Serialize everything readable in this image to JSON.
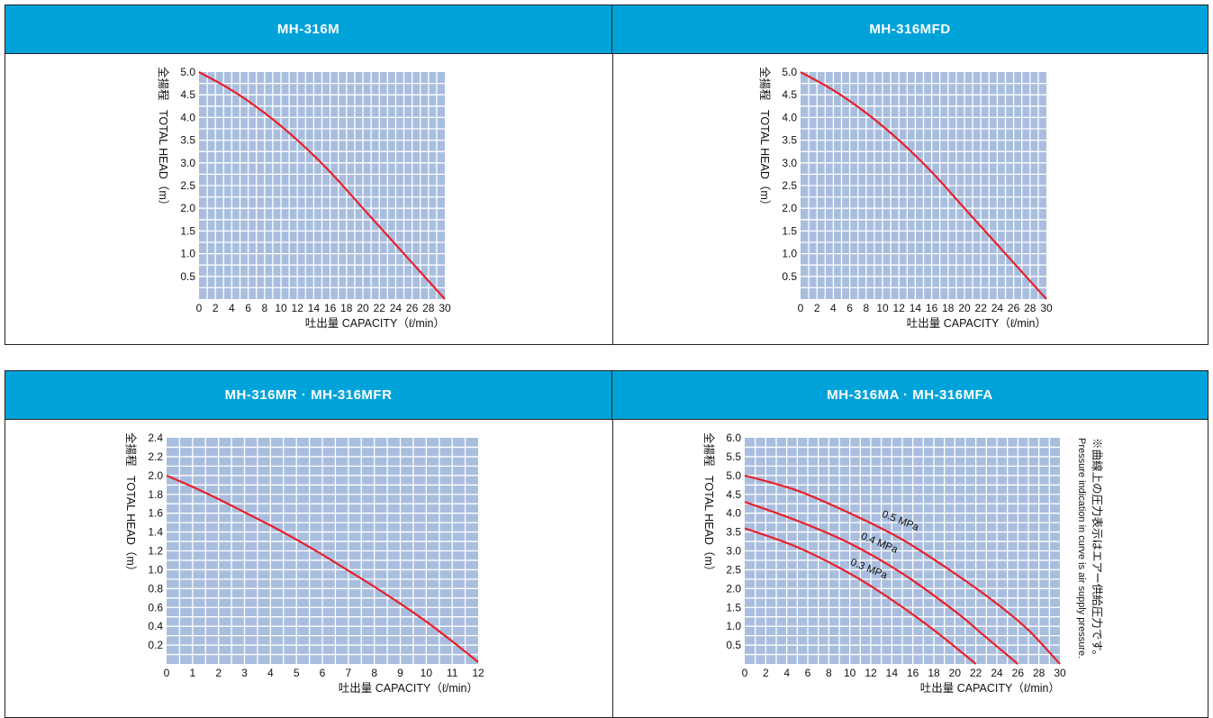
{
  "headers": {
    "top_left": "MH-316M",
    "top_right": "MH-316MFD",
    "bottom_left": "MH-316MR · MH-316MFR",
    "bottom_right": "MH-316MA · MH-316MFA"
  },
  "side_note": {
    "jp": "※曲線上の圧力表示はエアー供給圧力です。",
    "en": "Pressure indication in curve is air supply pressure."
  },
  "colors": {
    "header": "#00a3d9",
    "plot": "#a9bedf",
    "grid": "#ffffff",
    "curve": "#e8202a"
  },
  "chart_data": [
    {
      "type": "line",
      "title": "MH-316M",
      "xlabel": "吐出量 CAPACITY（ℓ/min）",
      "ylabel_jp": "全揚程",
      "ylabel": "TOTAL HEAD（m）",
      "xlim": [
        0,
        30
      ],
      "ylim": [
        0,
        5
      ],
      "x_ticks": [
        0,
        2,
        4,
        6,
        8,
        10,
        12,
        14,
        16,
        18,
        20,
        22,
        24,
        26,
        28,
        30
      ],
      "y_ticks": [
        "0.5",
        "1.0",
        "1.5",
        "2.0",
        "2.5",
        "3.0",
        "3.5",
        "4.0",
        "4.5",
        "5.0"
      ],
      "grid": true,
      "series": [
        {
          "x": [
            0,
            4,
            8,
            12,
            16,
            20,
            24,
            26,
            28,
            30
          ],
          "y": [
            5.0,
            4.6,
            4.1,
            3.5,
            2.8,
            2.0,
            1.2,
            0.8,
            0.4,
            0.0
          ]
        }
      ]
    },
    {
      "type": "line",
      "title": "MH-316MFD",
      "xlabel": "吐出量 CAPACITY（ℓ/min）",
      "ylabel_jp": "全揚程",
      "ylabel": "TOTAL HEAD（m）",
      "xlim": [
        0,
        30
      ],
      "ylim": [
        0,
        5
      ],
      "x_ticks": [
        0,
        2,
        4,
        6,
        8,
        10,
        12,
        14,
        16,
        18,
        20,
        22,
        24,
        26,
        28,
        30
      ],
      "y_ticks": [
        "0.5",
        "1.0",
        "1.5",
        "2.0",
        "2.5",
        "3.0",
        "3.5",
        "4.0",
        "4.5",
        "5.0"
      ],
      "grid": true,
      "series": [
        {
          "x": [
            0,
            4,
            8,
            12,
            16,
            20,
            24,
            26,
            28,
            30
          ],
          "y": [
            5.0,
            4.6,
            4.1,
            3.5,
            2.8,
            2.0,
            1.2,
            0.8,
            0.4,
            0.0
          ]
        }
      ]
    },
    {
      "type": "line",
      "title": "MH-316MR · MH-316MFR",
      "xlabel": "吐出量 CAPACITY（ℓ/min）",
      "ylabel_jp": "全揚程",
      "ylabel": "TOTAL HEAD（m）",
      "xlim": [
        0,
        12
      ],
      "ylim": [
        0,
        2.4
      ],
      "x_ticks": [
        0,
        1,
        2,
        3,
        4,
        5,
        6,
        7,
        8,
        9,
        10,
        11,
        12
      ],
      "y_ticks": [
        "0.2",
        "0.4",
        "0.6",
        "0.8",
        "1.0",
        "1.2",
        "1.4",
        "1.6",
        "1.8",
        "2.0",
        "2.2",
        "2.4"
      ],
      "grid": true,
      "series": [
        {
          "x": [
            0,
            1,
            2,
            3,
            4,
            5,
            6,
            7,
            8,
            9,
            10,
            11,
            12
          ],
          "y": [
            2.0,
            1.88,
            1.75,
            1.61,
            1.47,
            1.32,
            1.16,
            0.99,
            0.82,
            0.64,
            0.45,
            0.24,
            0.02
          ]
        }
      ]
    },
    {
      "type": "line",
      "title": "MH-316MA · MH-316MFA",
      "xlabel": "吐出量 CAPACITY（ℓ/min）",
      "ylabel_jp": "全揚程",
      "ylabel": "TOTAL HEAD（m）",
      "xlim": [
        0,
        30
      ],
      "ylim": [
        0,
        6
      ],
      "x_ticks": [
        0,
        2,
        4,
        6,
        8,
        10,
        12,
        14,
        16,
        18,
        20,
        22,
        24,
        26,
        28,
        30
      ],
      "y_ticks": [
        "0.5",
        "1.0",
        "1.5",
        "2.0",
        "2.5",
        "3.0",
        "3.5",
        "4.0",
        "4.5",
        "5.0",
        "5.5",
        "6.0"
      ],
      "grid": true,
      "series": [
        {
          "name": "0.5 MPa",
          "x": [
            0,
            5,
            10,
            15,
            20,
            24,
            27,
            30
          ],
          "y": [
            5.0,
            4.6,
            4.0,
            3.3,
            2.4,
            1.6,
            0.9,
            0.0
          ]
        },
        {
          "name": "0.4 MPa",
          "x": [
            0,
            5,
            10,
            15,
            20,
            23,
            26
          ],
          "y": [
            4.3,
            3.8,
            3.2,
            2.4,
            1.4,
            0.7,
            0.0
          ]
        },
        {
          "name": "0.3 MPa",
          "x": [
            0,
            5,
            10,
            14,
            18,
            22
          ],
          "y": [
            3.6,
            3.1,
            2.4,
            1.7,
            0.9,
            0.0
          ]
        }
      ]
    }
  ]
}
